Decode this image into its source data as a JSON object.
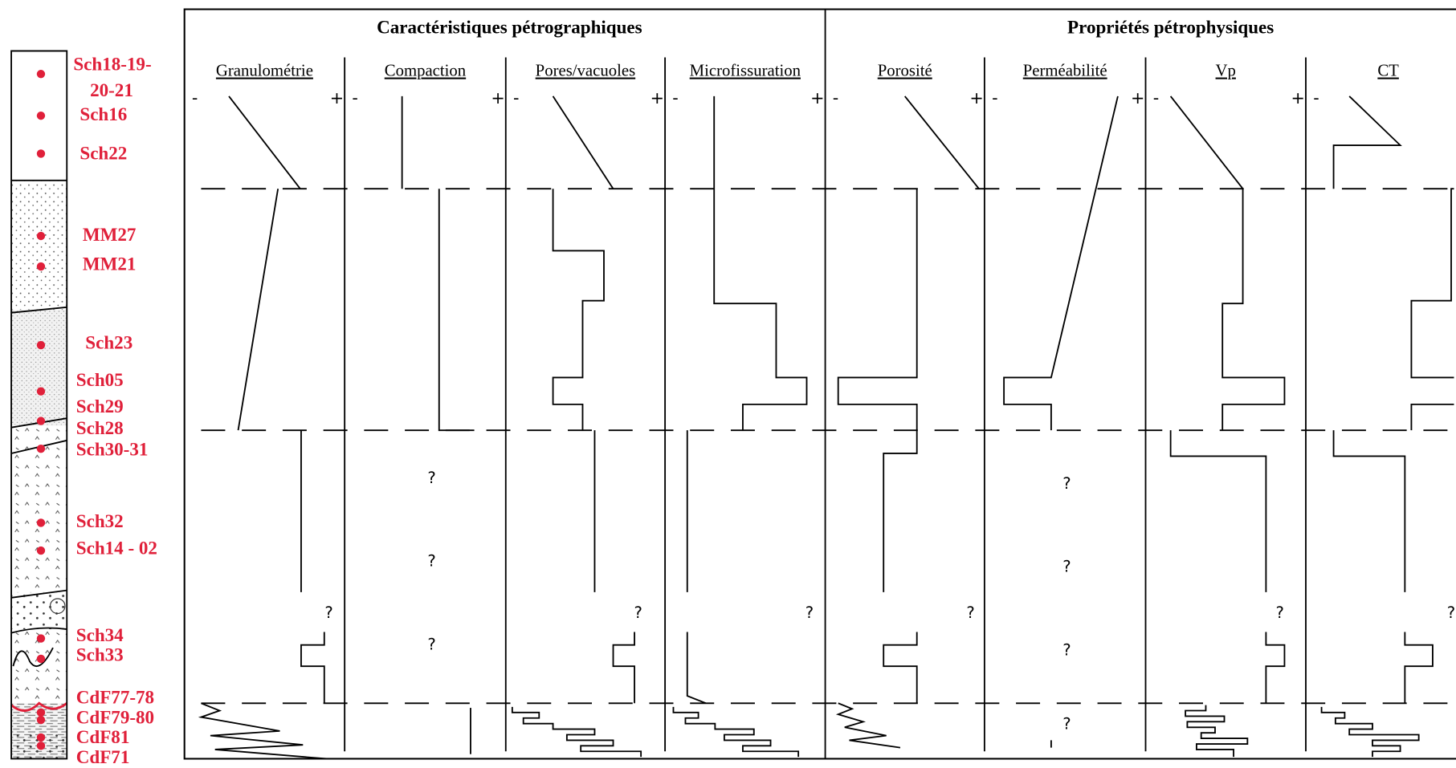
{
  "header": {
    "petrography": "Caractéristiques pétrographiques",
    "petrophysics": "Propriétés pétrophysiques"
  },
  "columns": [
    "Granulométrie",
    "Compaction",
    "Pores/vacuoles",
    "Microfissuration",
    "Porosité",
    "Perméabilité",
    "Vp",
    "CT"
  ],
  "scale": {
    "low": "-",
    "high": "+"
  },
  "unknown": "?",
  "samples": [
    "Sch18-19-",
    "20-21",
    "Sch16",
    "Sch22",
    "MM27",
    "MM21",
    "Sch23",
    "Sch05",
    "Sch29",
    "Sch28",
    "Sch30-31",
    "Sch32",
    "Sch14 - 02",
    "Sch34",
    "Sch33",
    "CdF77-78",
    "CdF79-80",
    "CdF81",
    "CdF71"
  ]
}
